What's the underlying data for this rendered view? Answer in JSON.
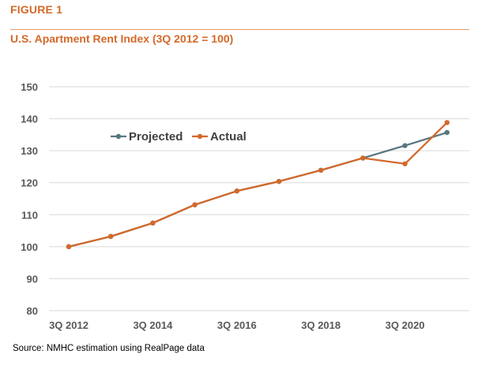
{
  "header": {
    "figure_label": "FIGURE 1",
    "title": "U.S. Apartment Rent Index (3Q 2012 = 100)"
  },
  "footer": {
    "source": "Source: NMHC estimation using RealPage data"
  },
  "colors": {
    "accent": "#d3692a",
    "projected": "#587680",
    "actual": "#d3692a",
    "grid": "#d9d9d9",
    "tick_text": "#595959"
  },
  "chart_data": {
    "type": "line",
    "title": "U.S. Apartment Rent Index (3Q 2012 = 100)",
    "xlabel": "",
    "ylabel": "",
    "x": [
      "3Q 2012",
      "3Q 2013",
      "3Q 2014",
      "3Q 2015",
      "3Q 2016",
      "3Q 2017",
      "3Q 2018",
      "3Q 2019",
      "3Q 2020",
      "3Q 2021"
    ],
    "x_tick_labels": [
      "3Q 2012",
      "3Q 2014",
      "3Q 2016",
      "3Q 2018",
      "3Q 2020"
    ],
    "y_ticks": [
      80,
      90,
      100,
      110,
      120,
      130,
      140,
      150
    ],
    "ylim": [
      80,
      150
    ],
    "grid": true,
    "legend_position": "upper-left",
    "series": [
      {
        "name": "Projected",
        "color": "#587680",
        "values": [
          100,
          103.2,
          107.4,
          113.1,
          117.4,
          120.4,
          123.9,
          127.7,
          131.6,
          135.7
        ]
      },
      {
        "name": "Actual",
        "color": "#d3692a",
        "values": [
          100,
          103.2,
          107.4,
          113.1,
          117.4,
          120.4,
          123.9,
          127.7,
          125.9,
          138.8
        ]
      }
    ]
  }
}
